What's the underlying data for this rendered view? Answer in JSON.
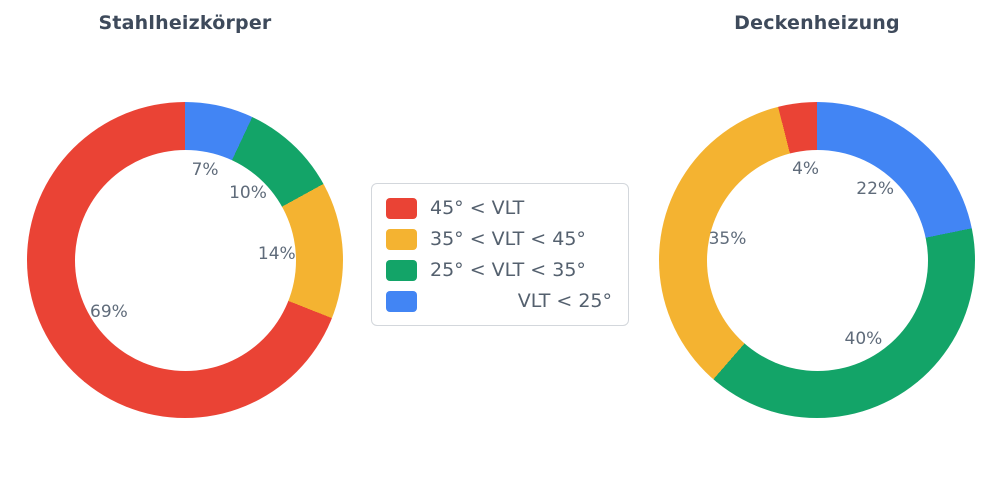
{
  "page": {
    "background": "#ffffff"
  },
  "legend": {
    "items": [
      {
        "label": "45° < VLT",
        "color": "#ea4335",
        "swatch": "red-swatch"
      },
      {
        "label": "35° < VLT < 45°",
        "color": "#f4b331",
        "swatch": "yellow-swatch"
      },
      {
        "label": "25° < VLT < 35°",
        "color": "#13a468",
        "swatch": "green-swatch"
      },
      {
        "label": "VLT < 25°",
        "color": "#4285f4",
        "swatch": "blue-swatch"
      }
    ]
  },
  "chart_data": [
    {
      "type": "pie",
      "title": "Stahlheizkörper",
      "hole": 0.7,
      "direction": "counterclockwise",
      "start_angle_deg": 0,
      "labels": [
        "45° < VLT",
        "35° < VLT < 45°",
        "25° < VLT < 35°",
        "VLT < 25°"
      ],
      "values": [
        69,
        14,
        10,
        7
      ],
      "value_labels": [
        "69%",
        "14%",
        "10%",
        "7%"
      ],
      "colors": [
        "#ea4335",
        "#f4b331",
        "#13a468",
        "#4285f4"
      ],
      "unit": "%"
    },
    {
      "type": "pie",
      "title": "Deckenheizung",
      "hole": 0.7,
      "direction": "counterclockwise",
      "start_angle_deg": 0,
      "labels": [
        "45° < VLT",
        "35° < VLT < 45°",
        "25° < VLT < 35°",
        "VLT < 25°"
      ],
      "values": [
        4,
        35,
        40,
        22
      ],
      "value_labels": [
        "4%",
        "35%",
        "40%",
        "22%"
      ],
      "colors": [
        "#ea4335",
        "#f4b331",
        "#13a468",
        "#4285f4"
      ],
      "unit": "%"
    }
  ]
}
